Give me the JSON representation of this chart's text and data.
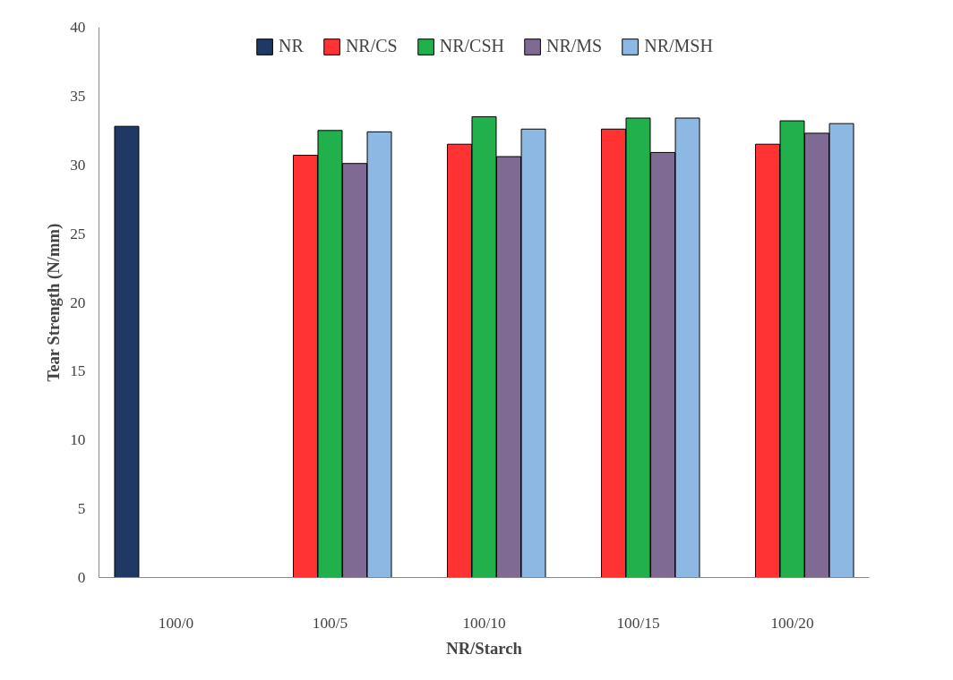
{
  "chart_data": {
    "type": "bar",
    "xlabel": "NR/Starch",
    "ylabel": "Tear Strength (N/mm)",
    "categories": [
      "100/0",
      "100/5",
      "100/10",
      "100/15",
      "100/20"
    ],
    "series": [
      {
        "name": "NR",
        "color": "#1f3864",
        "values": [
          32.8,
          null,
          null,
          null,
          null
        ]
      },
      {
        "name": "NR/CS",
        "color": "#ff3333",
        "values": [
          null,
          30.7,
          31.5,
          32.6,
          31.5
        ]
      },
      {
        "name": "NR/CSH",
        "color": "#22b04c",
        "values": [
          null,
          32.5,
          33.5,
          33.4,
          33.2
        ]
      },
      {
        "name": "NR/MS",
        "color": "#7f6a94",
        "values": [
          null,
          30.1,
          30.6,
          30.9,
          32.3
        ]
      },
      {
        "name": "NR/MSH",
        "color": "#8db8e3",
        "values": [
          null,
          32.4,
          32.6,
          33.4,
          33.0
        ]
      }
    ],
    "ylim": [
      0,
      40
    ],
    "yticks": [
      0,
      5,
      10,
      15,
      20,
      25,
      30,
      35,
      40
    ],
    "grid": false,
    "legend": "top"
  }
}
